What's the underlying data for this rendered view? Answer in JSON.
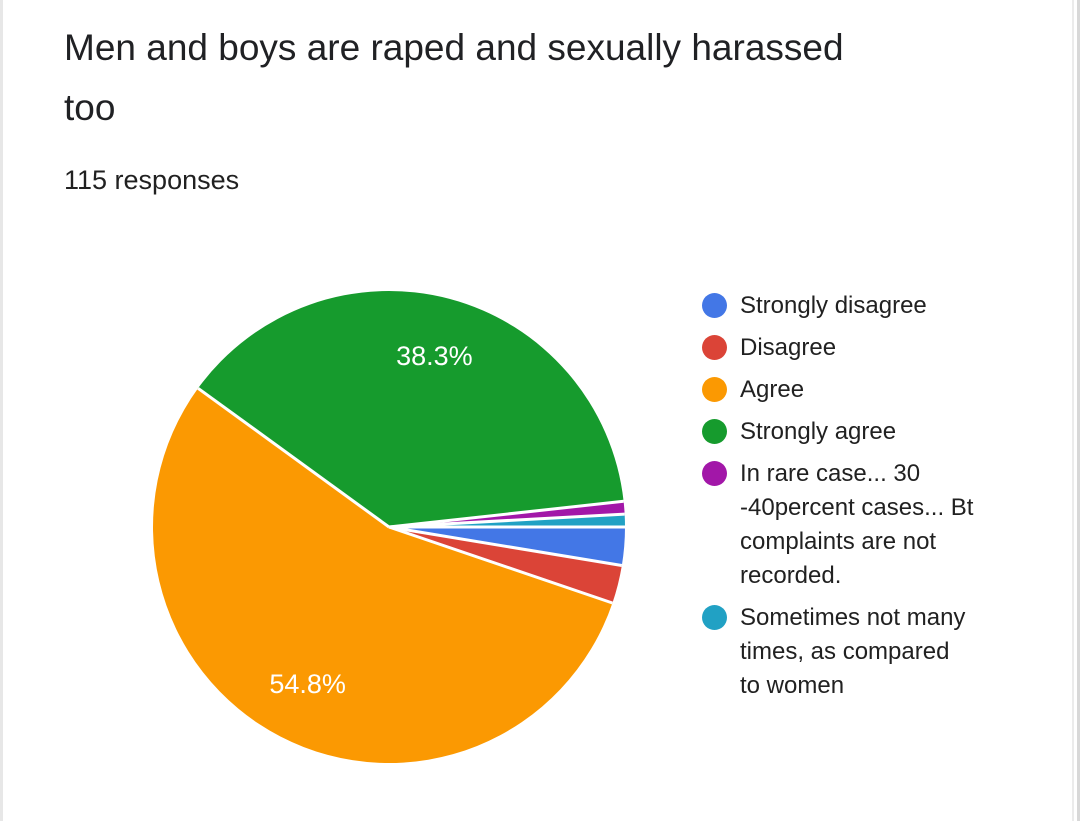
{
  "chart_data": {
    "type": "pie",
    "title": "Men and boys are raped and sexually harassed too",
    "subtitle": "115 responses",
    "total_responses": 115,
    "start_angle_deg": 90,
    "direction": "clockwise",
    "legend_position": "right",
    "separator_color": "#ffffff",
    "label_color": "#ffffff",
    "slices": [
      {
        "id": "strongly-disagree",
        "label": "Strongly disagree",
        "count": 3,
        "percent": 2.6,
        "color": "#4377e6",
        "show_pct_label": false,
        "pct_label": ""
      },
      {
        "id": "disagree",
        "label": "Disagree",
        "count": 3,
        "percent": 2.6,
        "color": "#db4437",
        "show_pct_label": false,
        "pct_label": ""
      },
      {
        "id": "agree",
        "label": "Agree",
        "count": 63,
        "percent": 54.8,
        "color": "#fb9902",
        "show_pct_label": true,
        "pct_label": "54.8%"
      },
      {
        "id": "strongly-agree",
        "label": "Strongly agree",
        "count": 44,
        "percent": 38.3,
        "color": "#169b2d",
        "show_pct_label": true,
        "pct_label": "38.3%"
      },
      {
        "id": "in-rare-case",
        "label": "In rare case... 30 -40percent cases... Bt complaints are not recorded.",
        "count": 1,
        "percent": 0.9,
        "color": "#a217a8",
        "show_pct_label": false,
        "pct_label": ""
      },
      {
        "id": "sometimes-not-many-times",
        "label": "Sometimes not many times, as compared to women",
        "count": 1,
        "percent": 0.9,
        "color": "#21a1c4",
        "show_pct_label": false,
        "pct_label": ""
      }
    ]
  },
  "colors": {
    "background": "#ffffff",
    "title_text": "#202124",
    "legend_text": "#212121"
  }
}
